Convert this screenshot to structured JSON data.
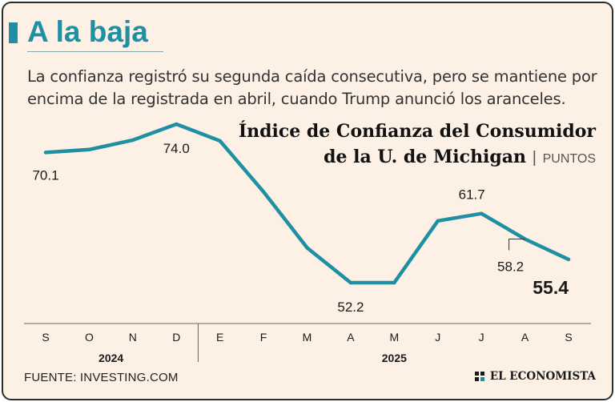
{
  "header": {
    "title": "A la baja",
    "subtitle_line1": "La confianza registró su segunda caída consecutiva, pero se mantiene por",
    "subtitle_line2": "encima de la registrada en abril, cuando Trump anunció los aranceles."
  },
  "colors": {
    "background": "#fdf0e4",
    "line": "#1f8fa3",
    "accent": "#1f8fa3",
    "text": "#1a1a1a",
    "axis": "#666666"
  },
  "chart_data": {
    "type": "line",
    "title_line1": "Índice de Confianza del Consumidor",
    "title_line2": "de la U. de Michigan",
    "units": "PUNTOS",
    "units_separator": "|",
    "categories": [
      "S",
      "O",
      "N",
      "D",
      "E",
      "F",
      "M",
      "A",
      "M",
      "J",
      "J",
      "A",
      "S"
    ],
    "values": [
      70.1,
      70.5,
      71.8,
      74.0,
      71.7,
      64.7,
      57.0,
      52.2,
      52.2,
      60.7,
      61.7,
      58.2,
      55.4
    ],
    "labels": [
      {
        "index": 0,
        "text": "70.1"
      },
      {
        "index": 3,
        "text": "74.0"
      },
      {
        "index": 7,
        "text": "52.2"
      },
      {
        "index": 10,
        "text": "61.7"
      },
      {
        "index": 11,
        "text": "58.2"
      },
      {
        "index": 12,
        "text": "55.4"
      }
    ],
    "year_groups": [
      {
        "label": "2024",
        "start": 0,
        "end": 3
      },
      {
        "label": "2025",
        "start": 4,
        "end": 12
      }
    ],
    "ylim": [
      50,
      76
    ],
    "grid": false
  },
  "footer": {
    "source": "FUENTE: INVESTING.COM",
    "brand": "EL ECONOMISTA"
  }
}
